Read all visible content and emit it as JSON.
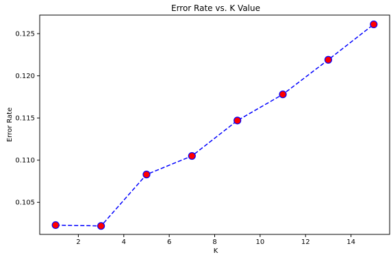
{
  "chart_data": {
    "type": "line",
    "title": "Error Rate vs. K Value",
    "xlabel": "K",
    "ylabel": "Error Rate",
    "xlim": [
      0.3,
      15.7
    ],
    "ylim": [
      0.1012,
      0.1272
    ],
    "xticks": [
      2,
      4,
      6,
      8,
      10,
      12,
      14
    ],
    "yticks": [
      0.105,
      0.11,
      0.115,
      0.12,
      0.125
    ],
    "xtick_labels": [
      "2",
      "4",
      "6",
      "8",
      "10",
      "12",
      "14"
    ],
    "ytick_labels": [
      "0.105",
      "0.110",
      "0.115",
      "0.120",
      "0.125"
    ],
    "grid": false,
    "series": [
      {
        "line_color": "#0000ff",
        "line_style": "dashed",
        "marker": "circle",
        "marker_face": "#ff0000",
        "marker_edge": "#0000ff",
        "x": [
          1,
          3,
          5,
          7,
          9,
          11,
          13,
          15
        ],
        "y": [
          0.1023,
          0.1022,
          0.1083,
          0.1105,
          0.1147,
          0.1178,
          0.1219,
          0.1261
        ]
      }
    ]
  }
}
